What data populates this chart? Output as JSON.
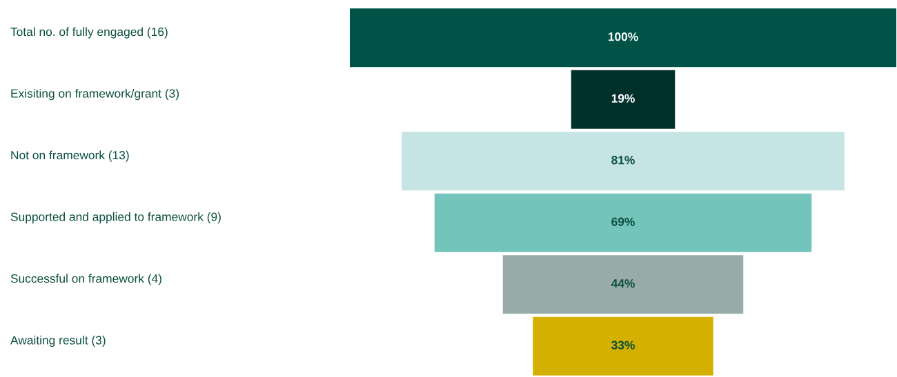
{
  "chart_data": {
    "type": "other",
    "categories": [
      "Total no. of fully engaged (16)",
      "Exisiting on framework/grant (3)",
      "Not on framework (13)",
      "Supported and applied to framework (9)",
      "Successful on framework (4)",
      "Awaiting result (3)"
    ],
    "values": [
      100,
      19,
      81,
      69,
      44,
      33
    ],
    "colors": [
      "#005346",
      "#00302a",
      "#c5e4e3",
      "#73c4bb",
      "#97aba8",
      "#d4b000"
    ],
    "data_labels": true,
    "value_labels": [
      "100%",
      "19%",
      "81%",
      "69%",
      "44%",
      "33%"
    ]
  }
}
